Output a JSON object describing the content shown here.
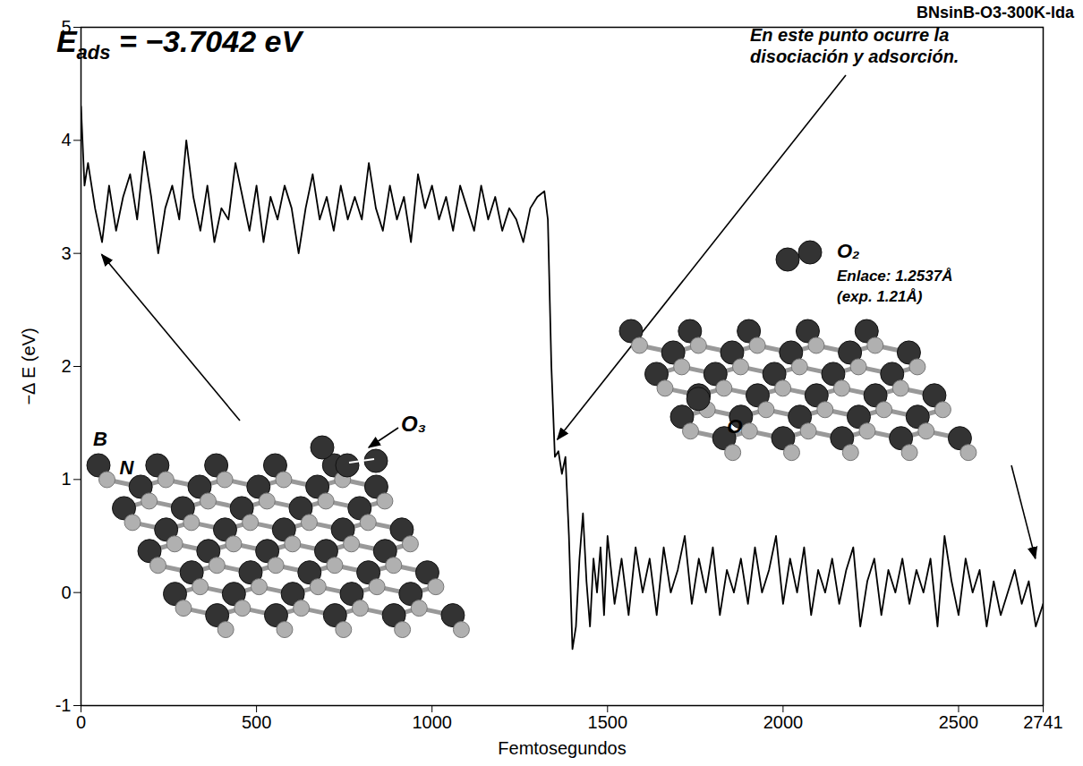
{
  "chart_data": {
    "type": "line",
    "title": "BNsinB-O3-300K-lda",
    "x_label": "Femtosegundos",
    "y_label": "−Δ E (eV)",
    "color": "#000000",
    "xlim": [
      0,
      2741
    ],
    "ylim": [
      -1,
      5
    ],
    "xticks": [
      0,
      500,
      1000,
      1500,
      2000,
      2500,
      2741
    ],
    "yticks": [
      -1,
      0,
      1,
      2,
      3,
      4,
      5
    ],
    "x": [
      0,
      10,
      20,
      40,
      60,
      80,
      100,
      120,
      140,
      160,
      180,
      200,
      220,
      240,
      260,
      280,
      300,
      320,
      340,
      360,
      380,
      400,
      420,
      440,
      460,
      480,
      500,
      520,
      540,
      560,
      580,
      600,
      620,
      640,
      660,
      680,
      700,
      720,
      740,
      760,
      780,
      800,
      820,
      840,
      860,
      880,
      900,
      920,
      940,
      960,
      980,
      1000,
      1020,
      1040,
      1060,
      1080,
      1100,
      1120,
      1140,
      1160,
      1180,
      1200,
      1220,
      1240,
      1260,
      1280,
      1300,
      1320,
      1330,
      1340,
      1350,
      1360,
      1370,
      1380,
      1390,
      1400,
      1410,
      1420,
      1430,
      1440,
      1450,
      1460,
      1470,
      1480,
      1490,
      1500,
      1520,
      1540,
      1560,
      1580,
      1600,
      1620,
      1640,
      1660,
      1680,
      1700,
      1720,
      1740,
      1760,
      1780,
      1800,
      1820,
      1840,
      1860,
      1880,
      1900,
      1920,
      1940,
      1960,
      1980,
      2000,
      2020,
      2040,
      2060,
      2080,
      2100,
      2120,
      2140,
      2160,
      2180,
      2200,
      2220,
      2240,
      2260,
      2280,
      2300,
      2320,
      2340,
      2360,
      2380,
      2400,
      2420,
      2440,
      2460,
      2480,
      2500,
      2520,
      2540,
      2560,
      2580,
      2600,
      2620,
      2640,
      2660,
      2680,
      2700,
      2720,
      2741
    ],
    "values": [
      4.3,
      3.6,
      3.8,
      3.4,
      3.1,
      3.6,
      3.2,
      3.5,
      3.7,
      3.3,
      3.9,
      3.5,
      3.0,
      3.4,
      3.6,
      3.3,
      4.0,
      3.5,
      3.2,
      3.6,
      3.1,
      3.4,
      3.3,
      3.8,
      3.5,
      3.2,
      3.6,
      3.1,
      3.5,
      3.3,
      3.6,
      3.4,
      3.0,
      3.4,
      3.7,
      3.3,
      3.5,
      3.2,
      3.6,
      3.3,
      3.5,
      3.3,
      3.8,
      3.4,
      3.2,
      3.6,
      3.3,
      3.5,
      3.1,
      3.7,
      3.4,
      3.6,
      3.3,
      3.5,
      3.2,
      3.6,
      3.4,
      3.2,
      3.6,
      3.3,
      3.5,
      3.2,
      3.4,
      3.3,
      3.1,
      3.4,
      3.5,
      3.55,
      3.3,
      2.0,
      1.2,
      1.25,
      1.05,
      1.2,
      0.5,
      -0.5,
      -0.3,
      0.3,
      0.7,
      0.1,
      -0.3,
      0.3,
      0.0,
      0.4,
      -0.2,
      0.5,
      -0.1,
      0.3,
      -0.2,
      0.4,
      0.0,
      0.3,
      -0.2,
      0.4,
      0.0,
      0.2,
      0.5,
      -0.1,
      0.3,
      0.0,
      0.4,
      -0.2,
      0.2,
      0.0,
      0.3,
      -0.1,
      0.4,
      0.0,
      0.2,
      0.5,
      -0.1,
      0.3,
      0.0,
      0.4,
      -0.2,
      0.2,
      0.0,
      0.3,
      -0.1,
      0.2,
      0.4,
      -0.3,
      0.1,
      0.3,
      -0.2,
      0.2,
      0.0,
      0.3,
      -0.1,
      0.2,
      0.0,
      0.3,
      -0.3,
      0.5,
      0.1,
      -0.2,
      0.3,
      0.0,
      0.2,
      -0.3,
      0.1,
      -0.2,
      0.0,
      0.2,
      -0.1,
      0.1,
      -0.3,
      -0.1
    ],
    "annotations": {
      "energy": {
        "symbol": "E",
        "subscript": "ads",
        "text": " = −3.7042 eV"
      },
      "event": [
        "En este punto ocurre la",
        "disociación y adsorción."
      ],
      "initial": {
        "molecule": "O₃",
        "boron": "B",
        "nitrogen": "N"
      },
      "final": {
        "molecule": "O₂",
        "bond": [
          "Enlace: 1.2537Å",
          "(exp. 1.21Å)"
        ],
        "adatom": "O"
      }
    }
  }
}
